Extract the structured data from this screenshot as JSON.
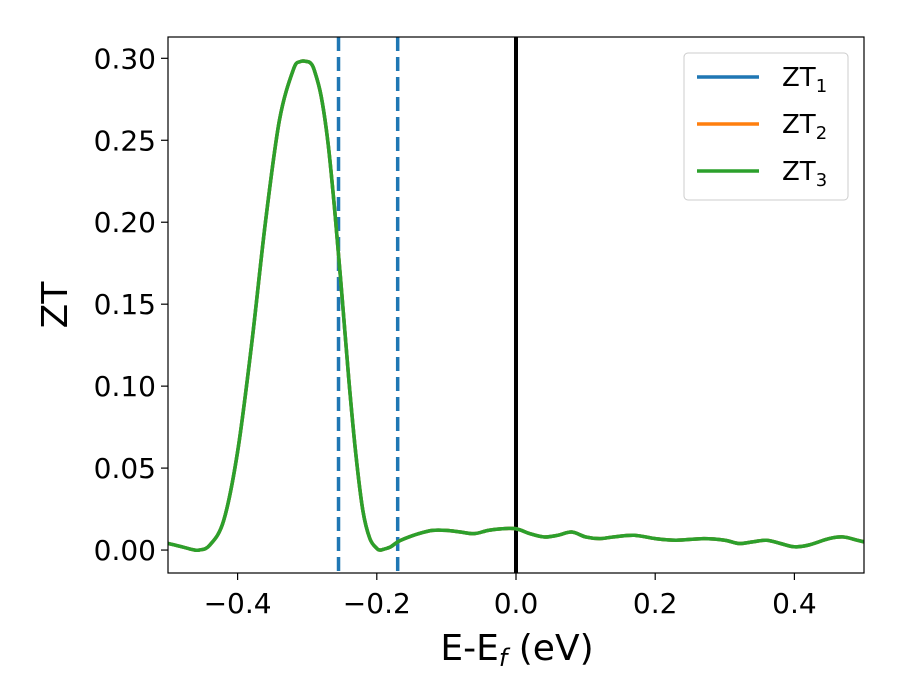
{
  "chart_data": {
    "type": "line",
    "xlabel": {
      "main": "E-E",
      "sub": "f",
      "unit": " (eV)"
    },
    "ylabel": "ZT",
    "xlim": [
      -0.5,
      0.5
    ],
    "ylim": [
      -0.014,
      0.313
    ],
    "x_ticks": [
      -0.4,
      -0.2,
      0.0,
      0.2,
      0.4
    ],
    "x_tick_labels": [
      "−0.4",
      "−0.2",
      "0.0",
      "0.2",
      "0.4"
    ],
    "y_ticks": [
      0.0,
      0.05,
      0.1,
      0.15,
      0.2,
      0.25,
      0.3
    ],
    "y_tick_labels": [
      "0.00",
      "0.05",
      "0.10",
      "0.15",
      "0.20",
      "0.25",
      "0.30"
    ],
    "grid": false,
    "legend_position": "top-right",
    "series": [
      {
        "name": "ZT",
        "sub": "1",
        "color": "#1f77b4"
      },
      {
        "name": "ZT",
        "sub": "2",
        "color": "#ff7f0e"
      },
      {
        "name": "ZT",
        "sub": "3",
        "color": "#2ca02c"
      }
    ],
    "curve": {
      "x": [
        -0.5,
        -0.48,
        -0.465,
        -0.455,
        -0.44,
        -0.42,
        -0.4,
        -0.38,
        -0.36,
        -0.34,
        -0.32,
        -0.31,
        -0.3,
        -0.295,
        -0.29,
        -0.28,
        -0.27,
        -0.26,
        -0.25,
        -0.24,
        -0.23,
        -0.22,
        -0.21,
        -0.2,
        -0.195,
        -0.19,
        -0.18,
        -0.17,
        -0.16,
        -0.14,
        -0.12,
        -0.1,
        -0.08,
        -0.06,
        -0.04,
        -0.02,
        0.0,
        0.02,
        0.04,
        0.06,
        0.08,
        0.1,
        0.12,
        0.14,
        0.17,
        0.2,
        0.23,
        0.27,
        0.3,
        0.32,
        0.34,
        0.36,
        0.38,
        0.4,
        0.42,
        0.45,
        0.47,
        0.49,
        0.5
      ],
      "y": [
        0.004,
        0.002,
        0.0003,
        0.0,
        0.003,
        0.018,
        0.06,
        0.125,
        0.2,
        0.262,
        0.293,
        0.298,
        0.298,
        0.297,
        0.293,
        0.277,
        0.248,
        0.205,
        0.155,
        0.103,
        0.058,
        0.024,
        0.007,
        0.001,
        0.0,
        0.0005,
        0.002,
        0.005,
        0.007,
        0.01,
        0.012,
        0.012,
        0.011,
        0.01,
        0.012,
        0.013,
        0.013,
        0.01,
        0.008,
        0.009,
        0.011,
        0.008,
        0.007,
        0.008,
        0.009,
        0.007,
        0.006,
        0.007,
        0.006,
        0.004,
        0.005,
        0.006,
        0.004,
        0.002,
        0.003,
        0.007,
        0.008,
        0.006,
        0.005
      ]
    },
    "vlines": [
      {
        "x": -0.255,
        "color": "#1f77b4",
        "style": "dashed"
      },
      {
        "x": -0.17,
        "color": "#1f77b4",
        "style": "dashed"
      },
      {
        "x": 0.0,
        "color": "#000000",
        "style": "solid"
      }
    ]
  }
}
